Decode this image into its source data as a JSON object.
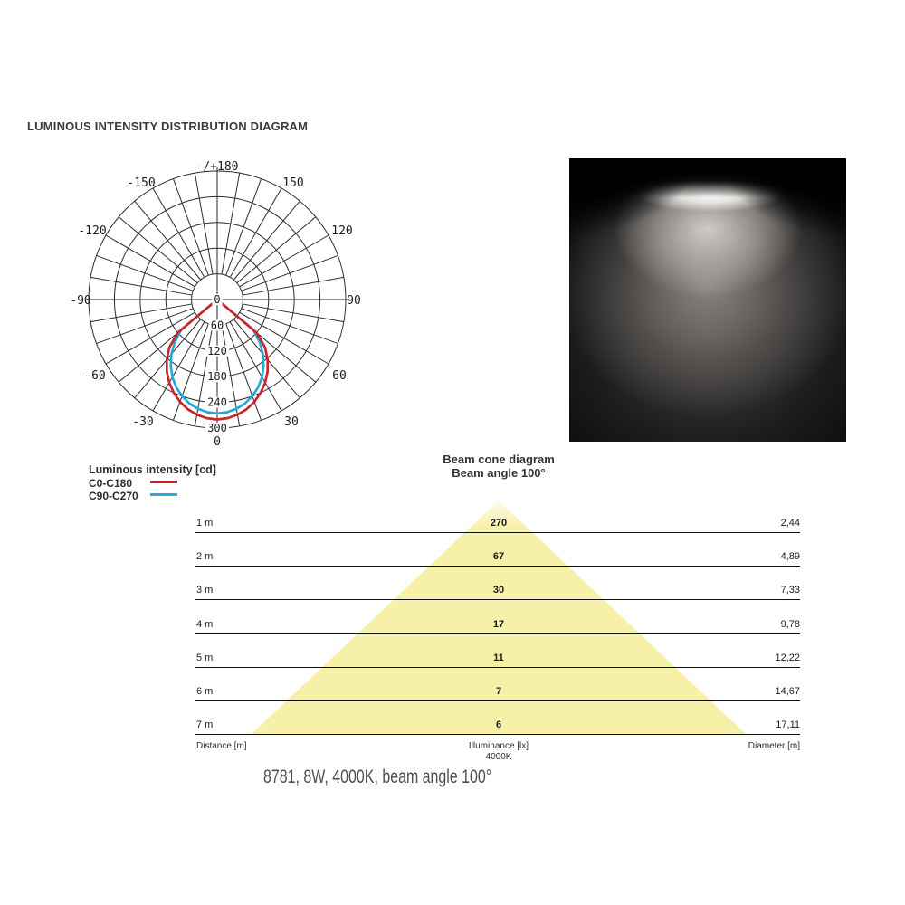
{
  "header": {
    "title": "LUMINOUS INTENSITY DISTRIBUTION DIAGRAM"
  },
  "colors": {
    "red": "#c9252c",
    "blue": "#29a9db",
    "cone_yellow": "#f7f0a8",
    "grid": "#2b2b2b",
    "label_text": "#1c1c1c"
  },
  "polar": {
    "radial_ticks": [
      0,
      60,
      120,
      180,
      240,
      300
    ],
    "angle_labels": [
      "-/+180",
      "-150",
      "150",
      "-120",
      "120",
      "-90",
      "90",
      "-60",
      "60",
      "-30",
      "30",
      "0"
    ],
    "max_radial_cd": 300
  },
  "legend": {
    "title": "Luminous intensity [cd]",
    "items": [
      {
        "label": "C0-C180",
        "color": "#c9252c"
      },
      {
        "label": "C90-C270",
        "color": "#29a9db"
      }
    ]
  },
  "photo": {
    "description": "light beam photo on black background"
  },
  "beam_cone": {
    "title": "Beam cone diagram",
    "subtitle": "Beam angle 100°",
    "rows": [
      {
        "distance": "1 m",
        "illuminance": "270",
        "diameter": "2,44"
      },
      {
        "distance": "2 m",
        "illuminance": "67",
        "diameter": "4,89"
      },
      {
        "distance": "3 m",
        "illuminance": "30",
        "diameter": "7,33"
      },
      {
        "distance": "4 m",
        "illuminance": "17",
        "diameter": "9,78"
      },
      {
        "distance": "5 m",
        "illuminance": "11",
        "diameter": "12,22"
      },
      {
        "distance": "6 m",
        "illuminance": "7",
        "diameter": "14,67"
      },
      {
        "distance": "7 m",
        "illuminance": "6",
        "diameter": "17,11"
      }
    ],
    "footer": {
      "distance_label": "Distance [m]",
      "illuminance_label": "Illuminance [lx]",
      "cct": "4000K",
      "diameter_label": "Diameter [m]"
    }
  },
  "caption": "8781, 8W, 4000K, beam angle 100°",
  "chart_data": [
    {
      "type": "line",
      "subtype": "polar-luminous-intensity",
      "title": "Luminous intensity [cd]",
      "angle_unit": "degrees from nadir (0 = straight down)",
      "angle_ticks_deg": [
        -150,
        -120,
        -90,
        -60,
        -30,
        0,
        30,
        60,
        90,
        120,
        150,
        180
      ],
      "radial_ticks_cd": [
        0,
        60,
        120,
        180,
        240,
        300
      ],
      "radial_max_cd": 300,
      "series": [
        {
          "name": "C0-C180",
          "color": "#c9252c",
          "angles_deg": [
            -50,
            -45,
            -40,
            -35,
            -30,
            -25,
            -20,
            -15,
            -10,
            -5,
            0,
            5,
            10,
            15,
            20,
            25,
            30,
            35,
            40,
            45,
            50
          ],
          "values_cd": [
            120,
            158,
            183,
            205,
            224,
            240,
            254,
            265,
            273,
            278,
            280,
            278,
            273,
            265,
            254,
            240,
            224,
            205,
            183,
            158,
            120
          ]
        },
        {
          "name": "C90-C270",
          "color": "#29a9db",
          "angles_deg": [
            -50,
            -45,
            -40,
            -35,
            -30,
            -25,
            -20,
            -15,
            -10,
            -5,
            0,
            5,
            10,
            15,
            20,
            25,
            30,
            35,
            40,
            45,
            50
          ],
          "values_cd": [
            110,
            140,
            166,
            189,
            209,
            226,
            240,
            251,
            259,
            264,
            266,
            264,
            259,
            251,
            240,
            226,
            209,
            189,
            166,
            140,
            110
          ]
        }
      ]
    },
    {
      "type": "table",
      "title": "Beam cone diagram",
      "subtitle": "Beam angle 100°",
      "columns": [
        "Distance [m]",
        "Illuminance [lx] 4000K",
        "Diameter [m]"
      ],
      "rows": [
        [
          "1 m",
          270,
          2.44
        ],
        [
          "2 m",
          67,
          4.89
        ],
        [
          "3 m",
          30,
          7.33
        ],
        [
          "4 m",
          17,
          9.78
        ],
        [
          "5 m",
          11,
          12.22
        ],
        [
          "6 m",
          7,
          14.67
        ],
        [
          "7 m",
          6,
          17.11
        ]
      ]
    }
  ]
}
